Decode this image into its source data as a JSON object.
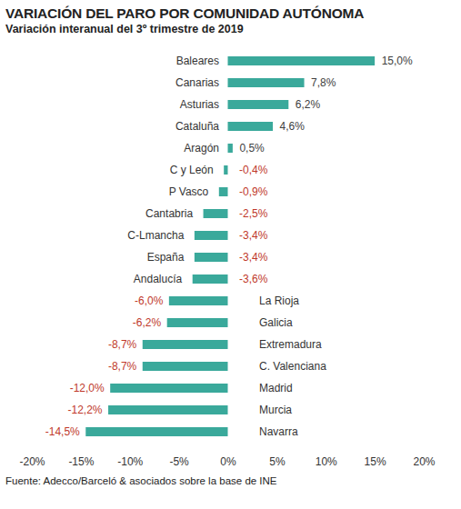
{
  "chart_data": {
    "type": "bar",
    "orientation": "horizontal",
    "title": "VARIACIÓN DEL PARO POR COMUNIDAD AUTÓNOMA",
    "subtitle": "Variación interanual del 3º trimestre de 2019",
    "source": "Fuente: Adecco/Barceló & asociados sobre la base de INE",
    "categories": [
      "Baleares",
      "Canarias",
      "Asturias",
      "Cataluña",
      "Aragón",
      "C y León",
      "P Vasco",
      "Cantabria",
      "C-Lmancha",
      "España",
      "Andalucía",
      "La Rioja",
      "Galicia",
      "Extremadura",
      "C. Valenciana",
      "Madrid",
      "Murcia",
      "Navarra"
    ],
    "values": [
      15.0,
      7.8,
      6.2,
      4.6,
      0.5,
      -0.4,
      -0.9,
      -2.5,
      -3.4,
      -3.4,
      -3.6,
      -6.0,
      -6.2,
      -8.7,
      -8.7,
      -12.0,
      -12.2,
      -14.5
    ],
    "value_labels": [
      "15,0%",
      "7,8%",
      "6,2%",
      "4,6%",
      "0,5%",
      "-0,4%",
      "-0,9%",
      "-2,5%",
      "-3,4%",
      "-3,4%",
      "-3,6%",
      "-6,0%",
      "-6,2%",
      "-8,7%",
      "-8,7%",
      "-12,0%",
      "-12,2%",
      "-14,5%"
    ],
    "color": "#3aa99b",
    "data_labels": true,
    "grid": false,
    "xlim": [
      -20,
      20
    ],
    "xticks": [
      {
        "value": -20,
        "label": "-20%"
      },
      {
        "value": -15,
        "label": "-15%"
      },
      {
        "value": -10,
        "label": "-10%"
      },
      {
        "value": -5,
        "label": "-5%"
      },
      {
        "value": 0,
        "label": "0%"
      },
      {
        "value": 5,
        "label": "5%"
      },
      {
        "value": 10,
        "label": "10%"
      },
      {
        "value": 15,
        "label": "15%"
      },
      {
        "value": 20,
        "label": "20%"
      }
    ]
  }
}
